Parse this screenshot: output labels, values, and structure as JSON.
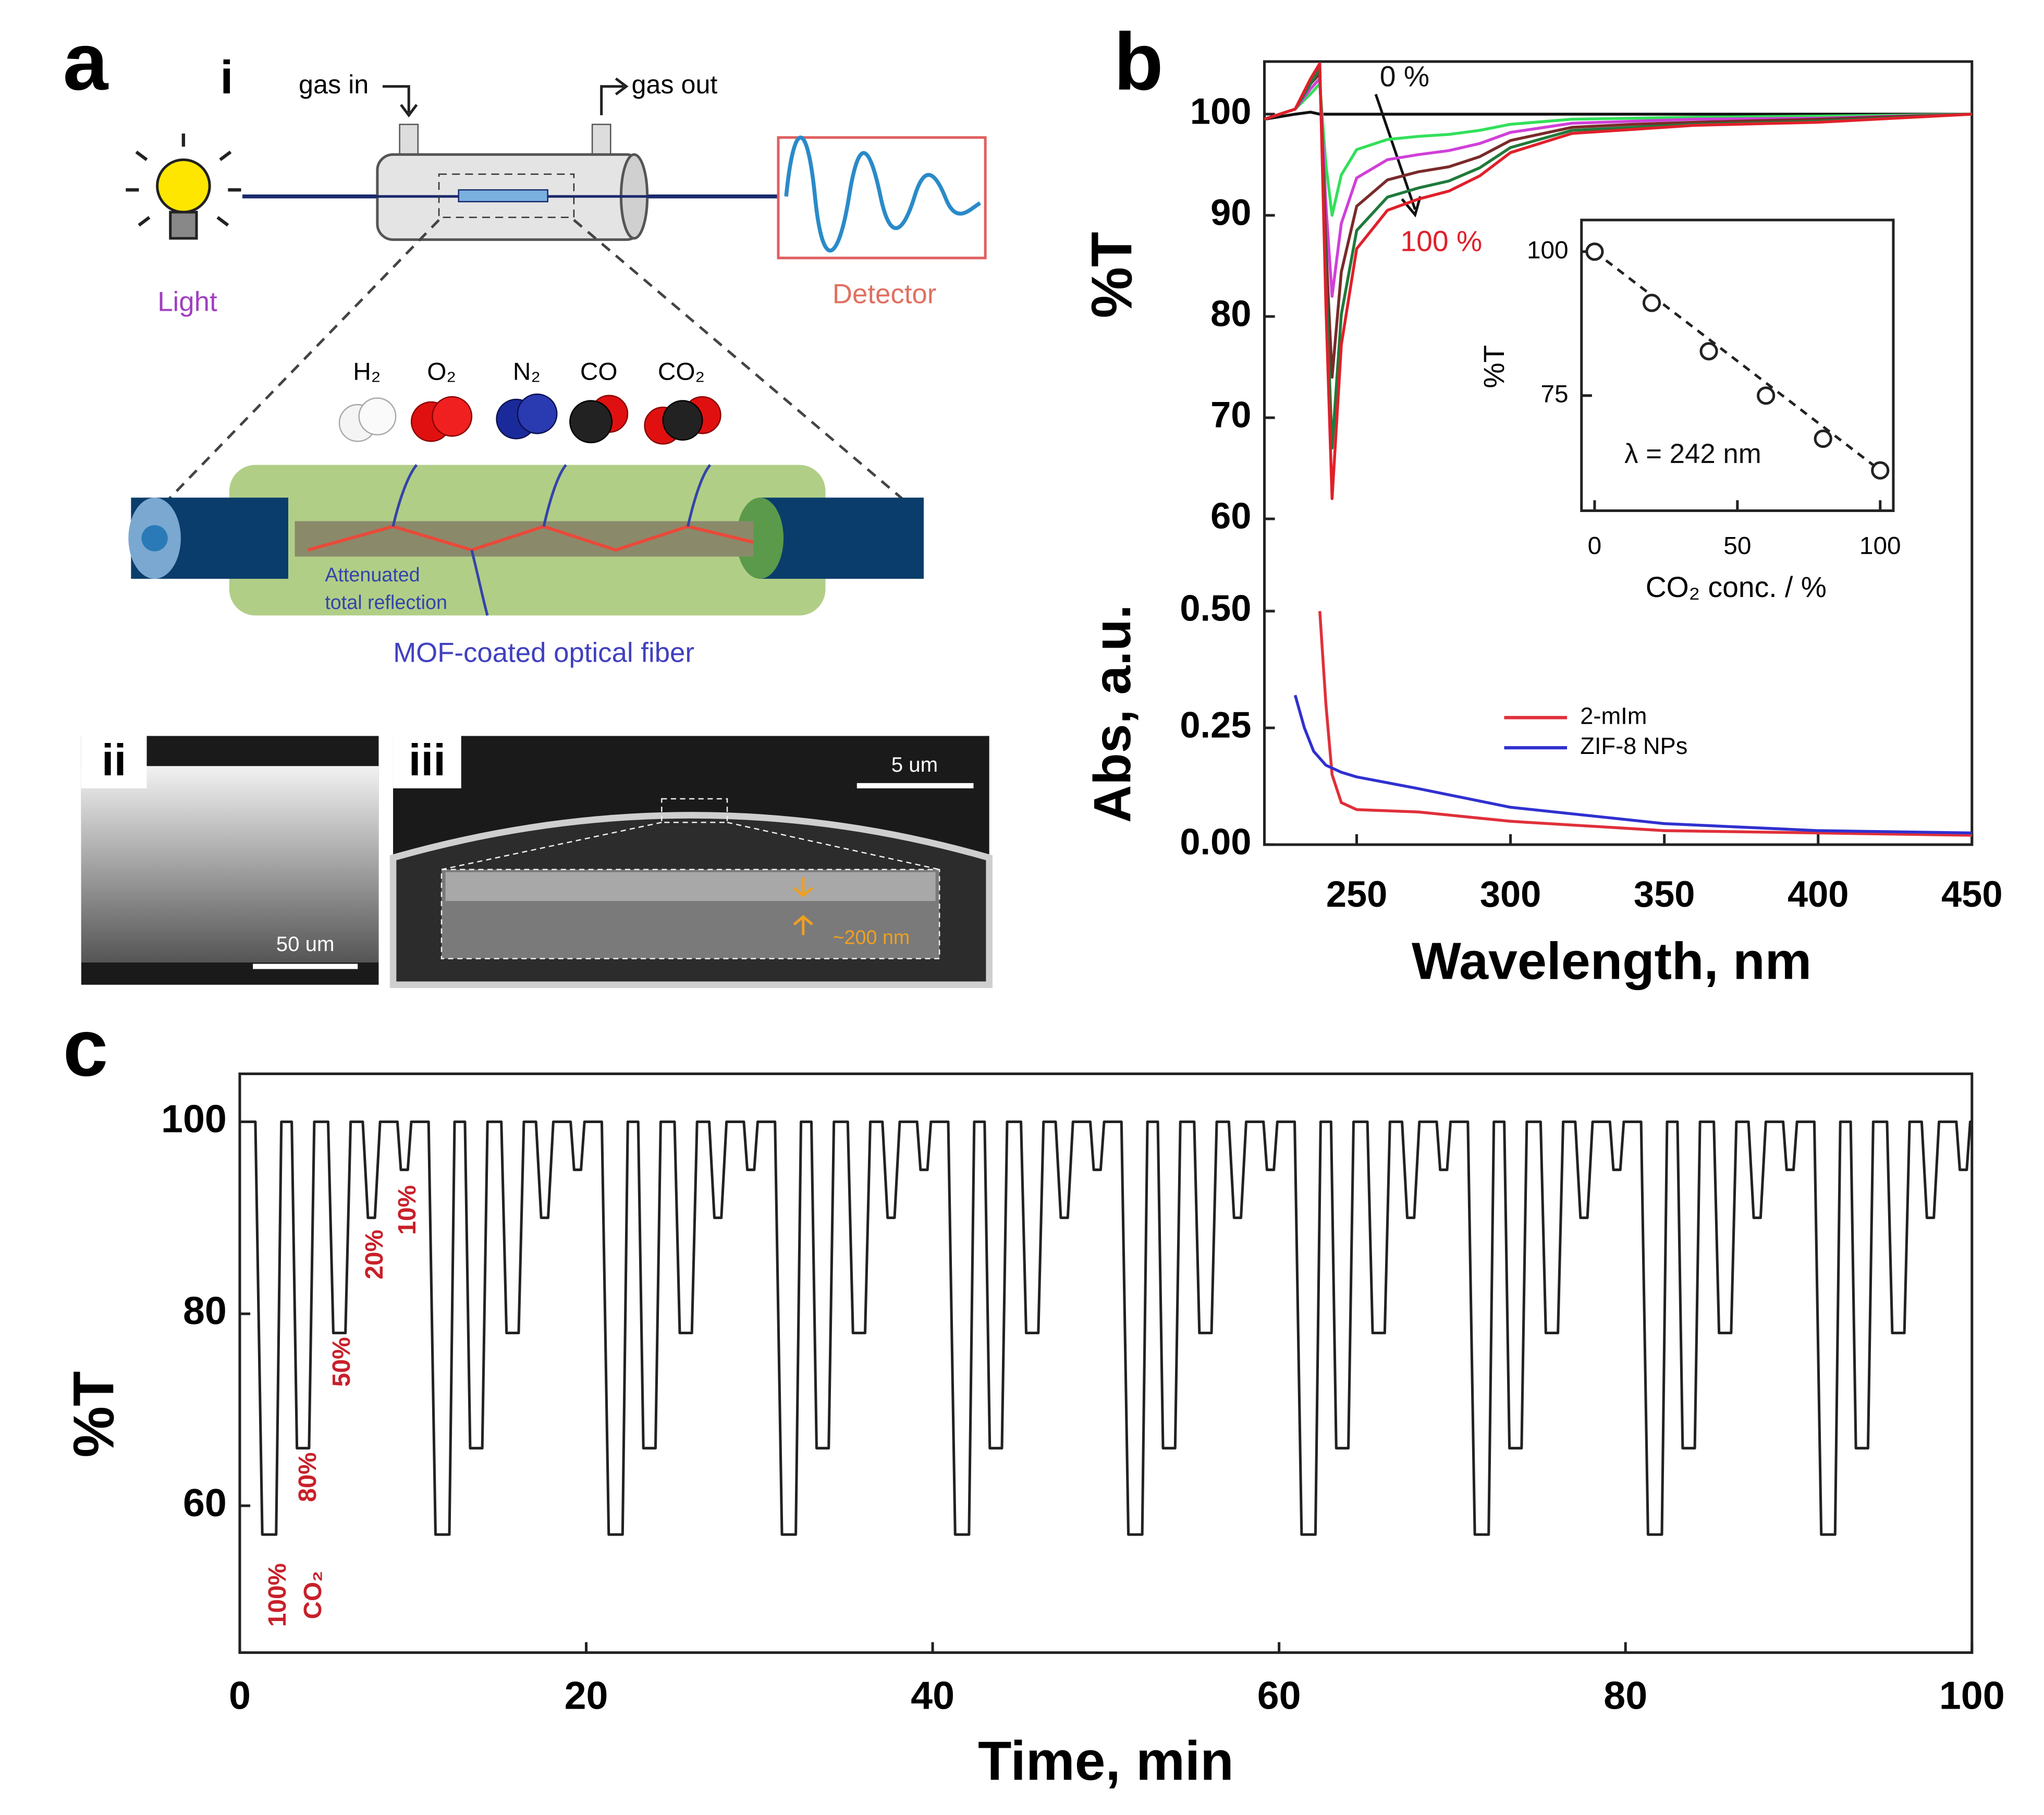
{
  "panel_a": {
    "label": "a",
    "sub_labels": [
      "i",
      "ii",
      "iii"
    ],
    "gas_in": "gas in",
    "gas_out": "gas out",
    "light": "Light",
    "detector": "Detector",
    "molecules": [
      "H₂",
      "O₂",
      "N₂",
      "CO",
      "CO₂"
    ],
    "attenuated": [
      "Attenuated",
      "total reflection"
    ],
    "caption": "MOF-coated optical fiber",
    "scale_bars": [
      "50 um",
      "5 um"
    ],
    "thickness": "~200 nm"
  },
  "chart_data": [
    {
      "type": "line",
      "panel_label": "b",
      "ylabel": "%T",
      "xlim": [
        220,
        450
      ],
      "ylim": [
        55.5,
        105.2
      ],
      "yticks": [
        60,
        70,
        80,
        90,
        100
      ],
      "x": [
        220,
        230,
        235,
        238,
        240,
        242,
        245,
        250,
        260,
        270,
        280,
        290,
        300,
        320,
        340,
        360,
        400,
        450
      ],
      "series": [
        {
          "color": "#111111",
          "values": [
            99.5,
            100,
            100.2,
            100,
            100,
            100,
            100,
            100,
            100,
            100,
            100,
            100,
            100,
            100,
            100,
            100,
            100,
            100
          ]
        },
        {
          "color": "#33e05a",
          "values": [
            99.5,
            100.5,
            102,
            103,
            95,
            90,
            94,
            96.5,
            97.5,
            97.8,
            98,
            98.4,
            99,
            99.5,
            99.6,
            99.7,
            99.8,
            100
          ]
        },
        {
          "color": "#d040d8",
          "values": [
            99.5,
            100.5,
            102.5,
            103.5,
            91,
            82,
            89.2,
            93.7,
            95.5,
            96,
            96.4,
            97.1,
            98.2,
            99.1,
            99.3,
            99.5,
            99.6,
            100
          ]
        },
        {
          "color": "#7a2a2a",
          "values": [
            99.5,
            100.5,
            103,
            104,
            87,
            74,
            84.4,
            90.9,
            93.5,
            94.3,
            94.8,
            95.8,
            97.4,
            98.7,
            99,
            99.2,
            99.5,
            100
          ]
        },
        {
          "color": "#1f7a3a",
          "values": [
            99.5,
            100.5,
            103,
            104.5,
            83.5,
            67,
            80.2,
            88.5,
            91.8,
            92.7,
            93.4,
            94.7,
            96.7,
            98.4,
            98.7,
            99,
            99.3,
            100
          ]
        },
        {
          "color": "#e0202a",
          "values": [
            99.5,
            100.5,
            103.5,
            105,
            81,
            62,
            77.2,
            86.7,
            90.5,
            91.6,
            92.4,
            93.9,
            96.2,
            98.1,
            98.5,
            98.9,
            99.2,
            100
          ]
        }
      ],
      "annotations": [
        {
          "text": "0 %",
          "color": "#111111"
        },
        {
          "text": "100 %",
          "color": "#e0202a"
        }
      ]
    },
    {
      "type": "line",
      "xlabel": "Wavelength, nm",
      "ylabel": "Abs, a.u.",
      "xlim": [
        220,
        450
      ],
      "xticks": [
        250,
        300,
        350,
        400,
        450
      ],
      "ylim": [
        0,
        0.6
      ],
      "yticks": [
        {
          "value": 0,
          "label": "0.00"
        },
        {
          "value": 0.25,
          "label": "0.25"
        },
        {
          "value": 0.5,
          "label": "0.50"
        }
      ],
      "legend": "center",
      "series": [
        {
          "name": "2-mIm",
          "color": "#e0303a",
          "x": [
            238,
            240,
            242,
            245,
            250,
            270,
            300,
            350,
            400,
            450
          ],
          "values": [
            0.5,
            0.3,
            0.15,
            0.09,
            0.075,
            0.07,
            0.05,
            0.03,
            0.025,
            0.02
          ]
        },
        {
          "name": "ZIF-8 NPs",
          "color": "#3030d0",
          "x": [
            230,
            233,
            236,
            240,
            245,
            250,
            270,
            300,
            350,
            400,
            450
          ],
          "values": [
            0.32,
            0.25,
            0.2,
            0.17,
            0.155,
            0.145,
            0.12,
            0.08,
            0.045,
            0.03,
            0.025
          ]
        }
      ]
    },
    {
      "type": "scatter",
      "xlabel": "CO₂ conc. / %",
      "ylabel": "%T",
      "xlim": [
        -4.6,
        104.6
      ],
      "ylim": [
        55,
        105.5
      ],
      "xticks": [
        0,
        50,
        100
      ],
      "yticks": [
        75,
        100
      ],
      "x": [
        0,
        20,
        40,
        60,
        80,
        100
      ],
      "values": [
        100,
        91.1,
        82.7,
        75,
        67.5,
        62
      ],
      "trend_line": "dashed",
      "annotations": [
        {
          "text": "λ  = 242 nm",
          "color": "#111111"
        }
      ]
    },
    {
      "type": "line",
      "panel_label": "c",
      "xlabel": "Time, min",
      "ylabel": "%T",
      "xlim": [
        0,
        100
      ],
      "ylim": [
        44.7,
        105
      ],
      "xticks": [
        0,
        20,
        40,
        60,
        80,
        100
      ],
      "yticks": [
        60,
        80,
        100
      ],
      "color": "#222222",
      "x": [
        0,
        0.9,
        1.3,
        2.1,
        2.4,
        3,
        3.3,
        4,
        4.3,
        5.1,
        5.4,
        6.1,
        6.4,
        7.1,
        7.4,
        7.8,
        8.1,
        9.1,
        9.3,
        9.7,
        9.9,
        10.9,
        11.3,
        12.1,
        12.4,
        13,
        13.3,
        14,
        14.3,
        15.1,
        15.4,
        16.1,
        16.4,
        17.1,
        17.4,
        17.8,
        18.1,
        19.1,
        19.3,
        19.7,
        19.9,
        20.9,
        21.3,
        22.1,
        22.4,
        23,
        23.3,
        24,
        24.3,
        25.1,
        25.4,
        26.1,
        26.4,
        27.1,
        27.4,
        27.8,
        28.1,
        29.1,
        29.3,
        29.7,
        29.9,
        30.9,
        31.3,
        32.1,
        32.4,
        33,
        33.3,
        34,
        34.3,
        35.1,
        35.4,
        36.1,
        36.4,
        37.1,
        37.4,
        37.8,
        38.1,
        39.1,
        39.3,
        39.7,
        39.9,
        40.9,
        41.3,
        42.1,
        42.4,
        43,
        43.3,
        44,
        44.3,
        45.1,
        45.4,
        46.1,
        46.4,
        47.1,
        47.4,
        47.8,
        48.1,
        49.1,
        49.3,
        49.7,
        49.9,
        50.9,
        51.3,
        52.1,
        52.4,
        53,
        53.3,
        54,
        54.3,
        55.1,
        55.4,
        56.1,
        56.4,
        57.1,
        57.4,
        57.8,
        58.1,
        59.1,
        59.3,
        59.7,
        59.9,
        60.9,
        61.3,
        62.1,
        62.4,
        63,
        63.3,
        64,
        64.3,
        65.1,
        65.4,
        66.1,
        66.4,
        67.1,
        67.4,
        67.8,
        68.1,
        69.1,
        69.3,
        69.7,
        69.9,
        70.9,
        71.3,
        72.1,
        72.4,
        73,
        73.3,
        74,
        74.3,
        75.1,
        75.4,
        76.1,
        76.4,
        77.1,
        77.4,
        77.8,
        78.1,
        79.1,
        79.3,
        79.7,
        79.9,
        80.9,
        81.3,
        82.1,
        82.4,
        83,
        83.3,
        84,
        84.3,
        85.1,
        85.4,
        86.1,
        86.4,
        87.1,
        87.4,
        87.8,
        88.1,
        89.1,
        89.3,
        89.7,
        89.9,
        90.9,
        91.3,
        92.1,
        92.4,
        93,
        93.3,
        94,
        94.3,
        95.1,
        95.4,
        96.1,
        96.4,
        97.1,
        97.4,
        97.8,
        98.1,
        99.1,
        99.3,
        99.7,
        99.9,
        100
      ],
      "values": [
        100,
        100,
        57,
        57,
        100,
        100,
        66,
        66,
        100,
        100,
        78,
        78,
        100,
        100,
        90,
        90,
        100,
        100,
        95,
        95,
        100,
        100,
        57,
        57,
        100,
        100,
        66,
        66,
        100,
        100,
        78,
        78,
        100,
        100,
        90,
        90,
        100,
        100,
        95,
        95,
        100,
        100,
        57,
        57,
        100,
        100,
        66,
        66,
        100,
        100,
        78,
        78,
        100,
        100,
        90,
        90,
        100,
        100,
        95,
        95,
        100,
        100,
        57,
        57,
        100,
        100,
        66,
        66,
        100,
        100,
        78,
        78,
        100,
        100,
        90,
        90,
        100,
        100,
        95,
        95,
        100,
        100,
        57,
        57,
        100,
        100,
        66,
        66,
        100,
        100,
        78,
        78,
        100,
        100,
        90,
        90,
        100,
        100,
        95,
        95,
        100,
        100,
        57,
        57,
        100,
        100,
        66,
        66,
        100,
        100,
        78,
        78,
        100,
        100,
        90,
        90,
        100,
        100,
        95,
        95,
        100,
        100,
        57,
        57,
        100,
        100,
        66,
        66,
        100,
        100,
        78,
        78,
        100,
        100,
        90,
        90,
        100,
        100,
        95,
        95,
        100,
        100,
        57,
        57,
        100,
        100,
        66,
        66,
        100,
        100,
        78,
        78,
        100,
        100,
        90,
        90,
        100,
        100,
        95,
        95,
        100,
        100,
        57,
        57,
        100,
        100,
        66,
        66,
        100,
        100,
        78,
        78,
        100,
        100,
        90,
        90,
        100,
        100,
        95,
        95,
        100,
        100,
        57,
        57,
        100,
        100,
        66,
        66,
        100,
        100,
        78,
        78,
        100,
        100,
        90,
        90,
        100,
        100,
        95,
        95,
        100,
        99
      ],
      "annotations": [
        {
          "text": "100%",
          "color": "#c8202a"
        },
        {
          "text": "CO₂",
          "color": "#c8202a"
        },
        {
          "text": "80%",
          "color": "#c8202a"
        },
        {
          "text": "50%",
          "color": "#c8202a"
        },
        {
          "text": "20%",
          "color": "#c8202a"
        },
        {
          "text": "10%",
          "color": "#c8202a"
        }
      ]
    }
  ]
}
